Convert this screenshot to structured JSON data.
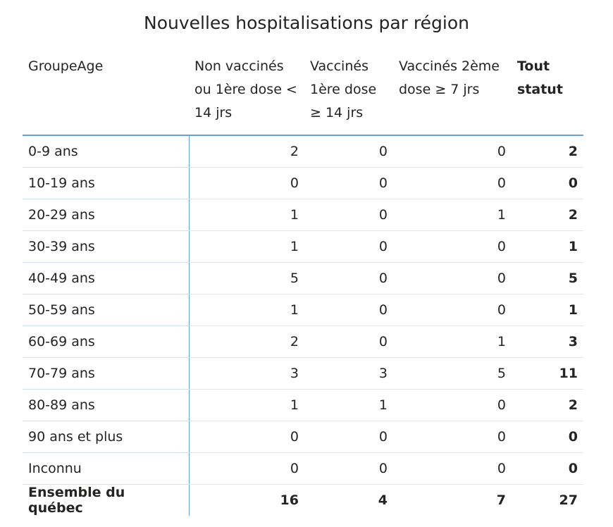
{
  "header": {
    "title": "Nouvelles hospitalisations par région"
  },
  "table": {
    "columns": [
      "GroupeAge",
      "Non vaccinés ou 1ère dose < 14 jrs",
      "Vaccinés 1ère dose ≥ 14 jrs",
      "Vaccinés 2ème dose ≥ 7 jrs",
      "Tout statut"
    ],
    "rows": [
      [
        "0-9 ans",
        2,
        0,
        0,
        2
      ],
      [
        "10-19 ans",
        0,
        0,
        0,
        0
      ],
      [
        "20-29 ans",
        1,
        0,
        1,
        2
      ],
      [
        "30-39 ans",
        1,
        0,
        0,
        1
      ],
      [
        "40-49 ans",
        5,
        0,
        0,
        5
      ],
      [
        "50-59 ans",
        1,
        0,
        0,
        1
      ],
      [
        "60-69 ans",
        2,
        0,
        1,
        3
      ],
      [
        "70-79 ans",
        3,
        3,
        5,
        11
      ],
      [
        "80-89 ans",
        1,
        1,
        0,
        2
      ],
      [
        "90 ans et plus",
        0,
        0,
        0,
        0
      ],
      [
        "Inconnu",
        0,
        0,
        0,
        0
      ]
    ],
    "total": [
      "Ensemble du québec",
      16,
      4,
      7,
      27
    ]
  }
}
